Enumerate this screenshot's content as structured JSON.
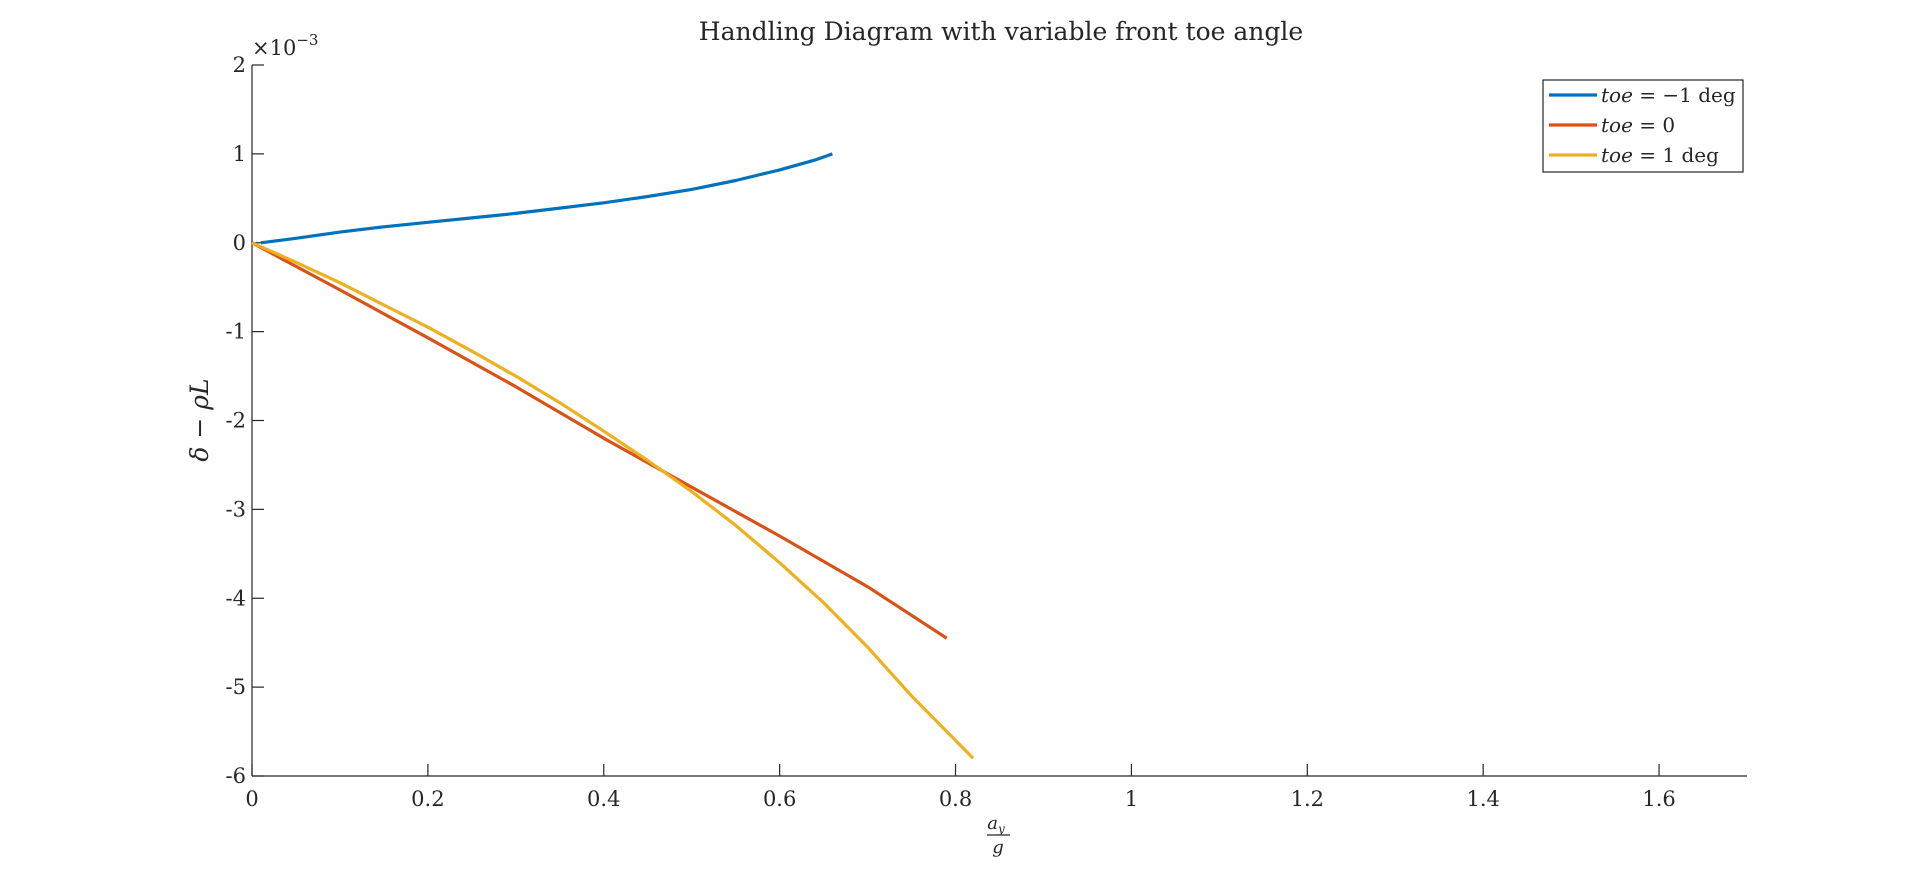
{
  "chart_data": {
    "type": "line",
    "title": "Handling Diagram with variable front toe angle",
    "xlabel": {
      "numerator": "a",
      "numerator_sub": "y",
      "denominator": "g"
    },
    "ylabel": "δ − ρL",
    "y_multiplier": {
      "base": "×10",
      "exponent": "−3"
    },
    "xlim": [
      0,
      1.7
    ],
    "ylim": [
      -6,
      2
    ],
    "x_ticks": [
      0,
      0.2,
      0.4,
      0.6,
      0.8,
      1,
      1.2,
      1.4,
      1.6
    ],
    "x_tick_labels": [
      "0",
      "0.2",
      "0.4",
      "0.6",
      "0.8",
      "1",
      "1.2",
      "1.4",
      "1.6"
    ],
    "y_ticks": [
      2,
      1,
      0,
      -1,
      -2,
      -3,
      -4,
      -5,
      -6
    ],
    "y_tick_labels": [
      "2",
      "1",
      "0",
      "-1",
      "-2",
      "-3",
      "-4",
      "-5",
      "-6"
    ],
    "grid": false,
    "legend_position": "top-right",
    "series": [
      {
        "name": "toe = −1 deg",
        "legend": {
          "var": "toe",
          "rel": " = ",
          "value": "−1",
          "unit": "deg"
        },
        "color": "#0072BD",
        "x": [
          0.01,
          0.05,
          0.1,
          0.15,
          0.2,
          0.25,
          0.3,
          0.35,
          0.4,
          0.45,
          0.5,
          0.55,
          0.6,
          0.64,
          0.66
        ],
        "y": [
          0.0,
          0.05,
          0.12,
          0.18,
          0.23,
          0.28,
          0.33,
          0.39,
          0.45,
          0.52,
          0.6,
          0.7,
          0.82,
          0.93,
          1.0
        ]
      },
      {
        "name": "toe = 0",
        "legend": {
          "var": "toe",
          "rel": " = ",
          "value": "0",
          "unit": ""
        },
        "color": "#D95319",
        "x": [
          0,
          0.1,
          0.2,
          0.3,
          0.4,
          0.5,
          0.6,
          0.7,
          0.79
        ],
        "y": [
          0.0,
          -0.53,
          -1.07,
          -1.62,
          -2.2,
          -2.75,
          -3.3,
          -3.87,
          -4.45
        ]
      },
      {
        "name": "toe = 1 deg",
        "legend": {
          "var": "toe",
          "rel": " = ",
          "value": "1",
          "unit": "deg"
        },
        "color": "#EDB120",
        "x": [
          0,
          0.05,
          0.1,
          0.15,
          0.2,
          0.25,
          0.3,
          0.35,
          0.4,
          0.45,
          0.5,
          0.55,
          0.6,
          0.65,
          0.7,
          0.75,
          0.8,
          0.82
        ],
        "y": [
          0.0,
          -0.22,
          -0.45,
          -0.7,
          -0.95,
          -1.22,
          -1.5,
          -1.8,
          -2.12,
          -2.45,
          -2.8,
          -3.18,
          -3.6,
          -4.05,
          -4.55,
          -5.1,
          -5.6,
          -5.8
        ]
      }
    ]
  }
}
